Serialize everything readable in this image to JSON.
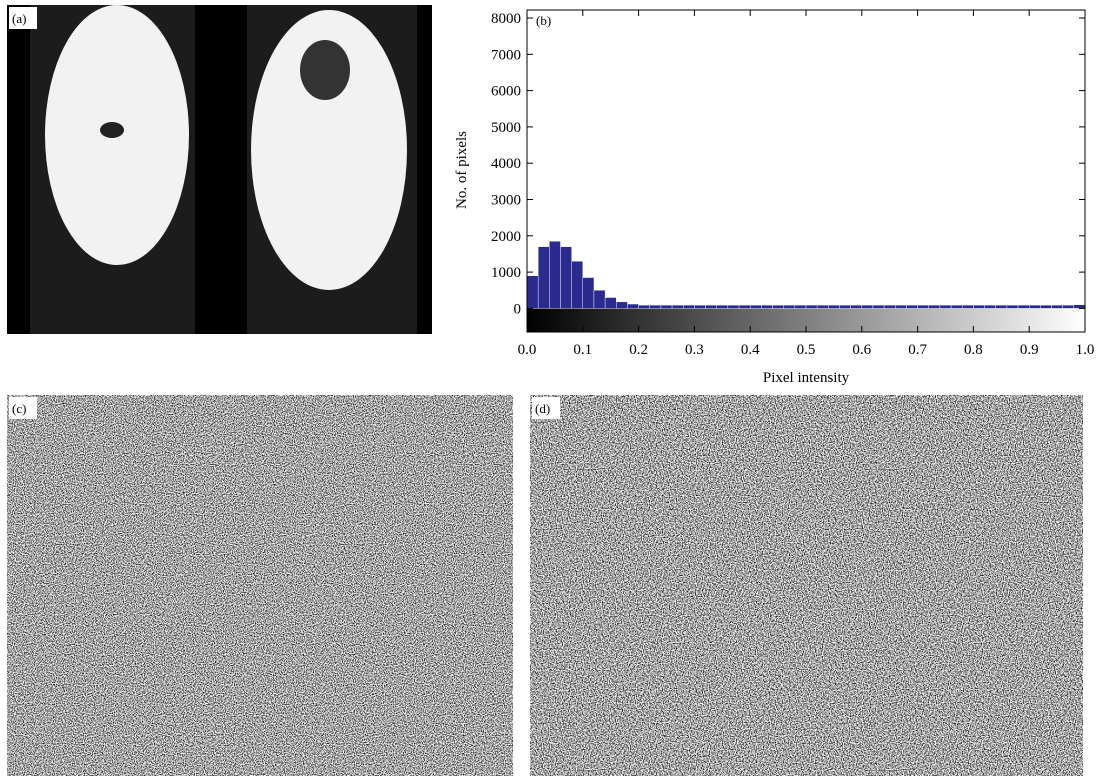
{
  "panels": {
    "a": {
      "label": "(a)"
    },
    "c": {
      "label": "(c)"
    },
    "d": {
      "label": "(d)"
    }
  },
  "chart_data": {
    "type": "histogram",
    "annotation": "(b)",
    "x_label": "Pixel intensity",
    "y_label": "No. of pixels",
    "color": "#2b2b8f",
    "bins": [
      0,
      0.02,
      0.04,
      0.06,
      0.08,
      0.1,
      0.12,
      0.14,
      0.16,
      0.18,
      0.2,
      0.22,
      0.24,
      0.26,
      0.28,
      0.3,
      0.32,
      0.34,
      0.36,
      0.38,
      0.4,
      0.42,
      0.44,
      0.46,
      0.48,
      0.5,
      0.52,
      0.54,
      0.56,
      0.58,
      0.6,
      0.62,
      0.64,
      0.66,
      0.68,
      0.7,
      0.72,
      0.74,
      0.76,
      0.78,
      0.8,
      0.82,
      0.84,
      0.86,
      0.88,
      0.9,
      0.92,
      0.94,
      0.96,
      0.98,
      1.0
    ],
    "counts": [
      900,
      1700,
      1850,
      1700,
      1300,
      850,
      500,
      300,
      180,
      120,
      90,
      90,
      90,
      90,
      90,
      90,
      90,
      90,
      90,
      90,
      90,
      90,
      90,
      90,
      90,
      90,
      90,
      90,
      90,
      90,
      90,
      90,
      90,
      90,
      90,
      90,
      90,
      90,
      90,
      90,
      90,
      90,
      90,
      90,
      90,
      90,
      90,
      90,
      90,
      100
    ],
    "xlim": [
      0,
      1
    ],
    "ylim": [
      -650,
      8220
    ],
    "xticks": [
      {
        "value": 0,
        "label": "0.0"
      },
      0.1,
      0.2,
      0.3,
      0.4,
      0.5,
      0.6,
      0.7,
      0.8,
      0.9,
      {
        "value": 1,
        "label": "1.0"
      }
    ],
    "yticks": [
      0,
      1000,
      2000,
      3000,
      4000,
      5000,
      6000,
      7000,
      8000
    ],
    "grid": false
  }
}
